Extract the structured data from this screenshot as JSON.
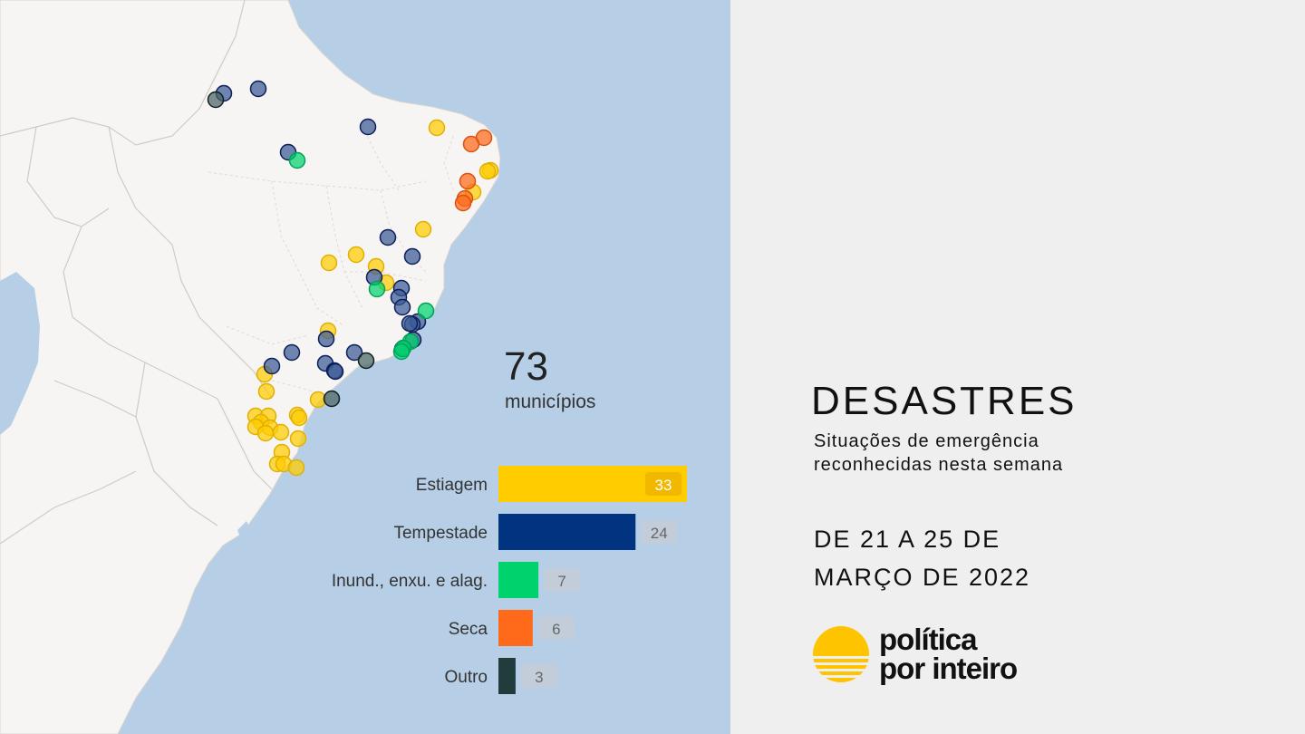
{
  "summary": {
    "count": "73",
    "count_label": "municípios"
  },
  "header": {
    "title": "DESASTRES",
    "subtitle_line1": "Situações de emergência",
    "subtitle_line2": "reconhecidas nesta semana",
    "date_line1": "DE 21 A 25 DE",
    "date_line2": "MARÇO DE 2022"
  },
  "logo": {
    "line1": "política",
    "line2": "por inteiro",
    "color": "#ffc400"
  },
  "colors": {
    "ocean": "#b7cfe6",
    "land": "#f7f5f3",
    "estiagem": "#ffcc00",
    "tempestade": "#003380",
    "inundacao": "#00d26e",
    "seca": "#ff6a1a",
    "outro": "#213c3c"
  },
  "chart_data": {
    "type": "bar",
    "orientation": "horizontal",
    "categories": [
      "Estiagem",
      "Tempestade",
      "Inund., enxu. e alag.",
      "Seca",
      "Outro"
    ],
    "values": [
      33,
      24,
      7,
      6,
      3
    ],
    "colors": [
      "#ffcc00",
      "#003380",
      "#00d26e",
      "#ff6a1a",
      "#213c3c"
    ]
  },
  "map_points": {
    "estiagem": [
      [
        482,
        141
      ],
      [
        541,
        188
      ],
      [
        538,
        189
      ],
      [
        522,
        212
      ],
      [
        467,
        253
      ],
      [
        393,
        281
      ],
      [
        363,
        290
      ],
      [
        415,
        294
      ],
      [
        426,
        312
      ],
      [
        362,
        365
      ],
      [
        351,
        441
      ],
      [
        292,
        413
      ],
      [
        294,
        432
      ],
      [
        282,
        459
      ],
      [
        296,
        459
      ],
      [
        288,
        466
      ],
      [
        328,
        458
      ],
      [
        330,
        461
      ],
      [
        282,
        471
      ],
      [
        298,
        472
      ],
      [
        293,
        478
      ],
      [
        310,
        477
      ],
      [
        329,
        484
      ],
      [
        311,
        499
      ],
      [
        306,
        512
      ],
      [
        313,
        512
      ],
      [
        327,
        516
      ]
    ],
    "tempestade": [
      [
        247,
        103
      ],
      [
        285,
        98
      ],
      [
        406,
        140
      ],
      [
        318,
        168
      ],
      [
        428,
        262
      ],
      [
        455,
        283
      ],
      [
        413,
        306
      ],
      [
        443,
        318
      ],
      [
        440,
        328
      ],
      [
        444,
        339
      ],
      [
        461,
        355
      ],
      [
        455,
        358
      ],
      [
        452,
        357
      ],
      [
        456,
        375
      ],
      [
        444,
        385
      ],
      [
        360,
        374
      ],
      [
        322,
        389
      ],
      [
        391,
        389
      ],
      [
        300,
        404
      ],
      [
        359,
        401
      ],
      [
        369,
        409
      ],
      [
        370,
        410
      ]
    ],
    "inundacao": [
      [
        328,
        177
      ],
      [
        416,
        319
      ],
      [
        470,
        343
      ],
      [
        453,
        377
      ],
      [
        445,
        384
      ],
      [
        443,
        388
      ]
    ],
    "seca": [
      [
        534,
        152
      ],
      [
        520,
        159
      ],
      [
        516,
        200
      ],
      [
        513,
        219
      ],
      [
        511,
        224
      ]
    ],
    "outro": [
      [
        238,
        110
      ],
      [
        404,
        398
      ],
      [
        366,
        440
      ]
    ]
  }
}
